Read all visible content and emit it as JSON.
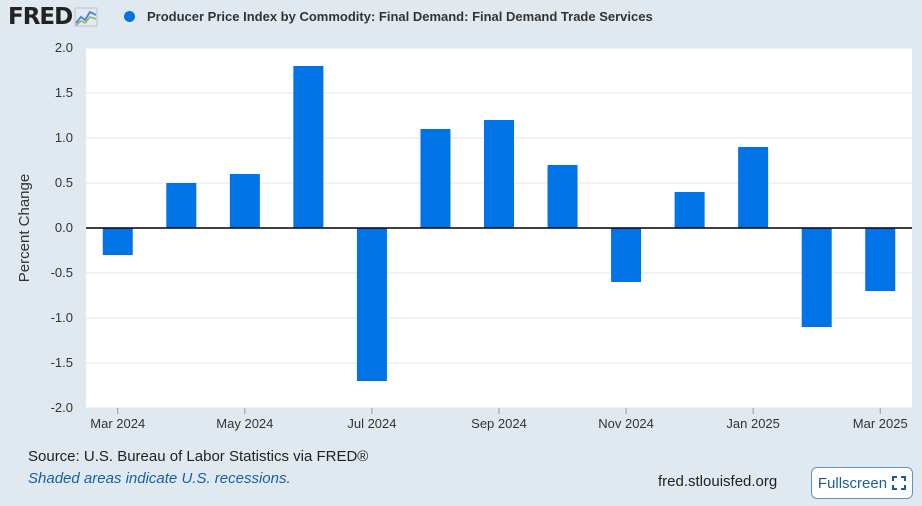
{
  "header": {
    "logo_text": "FRED",
    "legend_label": "Producer Price Index by Commodity: Final Demand: Final Demand Trade Services"
  },
  "colors": {
    "series": "#0073e6",
    "background": "#e1e9f0",
    "plot_background": "#ffffff",
    "grid": "#e6e6e6",
    "link": "#1560a8"
  },
  "chart_data": {
    "type": "bar",
    "ylabel": "Percent Change",
    "ylim": [
      -2.0,
      2.0
    ],
    "yticks": [
      "2.0",
      "1.5",
      "1.0",
      "0.5",
      "0.0",
      "-0.5",
      "-1.0",
      "-1.5",
      "-2.0"
    ],
    "grid": true,
    "categories": [
      "2024-03",
      "2024-04",
      "2024-05",
      "2024-06",
      "2024-07",
      "2024-08",
      "2024-09",
      "2024-10",
      "2024-11",
      "2024-12",
      "2025-01",
      "2025-02",
      "2025-03"
    ],
    "values": [
      -0.3,
      0.5,
      0.6,
      1.8,
      -1.7,
      1.1,
      1.2,
      0.7,
      -0.6,
      0.4,
      0.9,
      -1.1,
      -0.7
    ],
    "x_tick_labels": [
      "Mar 2024",
      "",
      "May 2024",
      "",
      "Jul 2024",
      "",
      "Sep 2024",
      "",
      "Nov 2024",
      "",
      "Jan 2025",
      "",
      "Mar 2025"
    ]
  },
  "footer": {
    "source": "Source: U.S. Bureau of Labor Statistics via FRED®",
    "note": "Shaded areas indicate U.S. recessions.",
    "site": "fred.stlouisfed.org",
    "fullscreen_label": "Fullscreen"
  }
}
